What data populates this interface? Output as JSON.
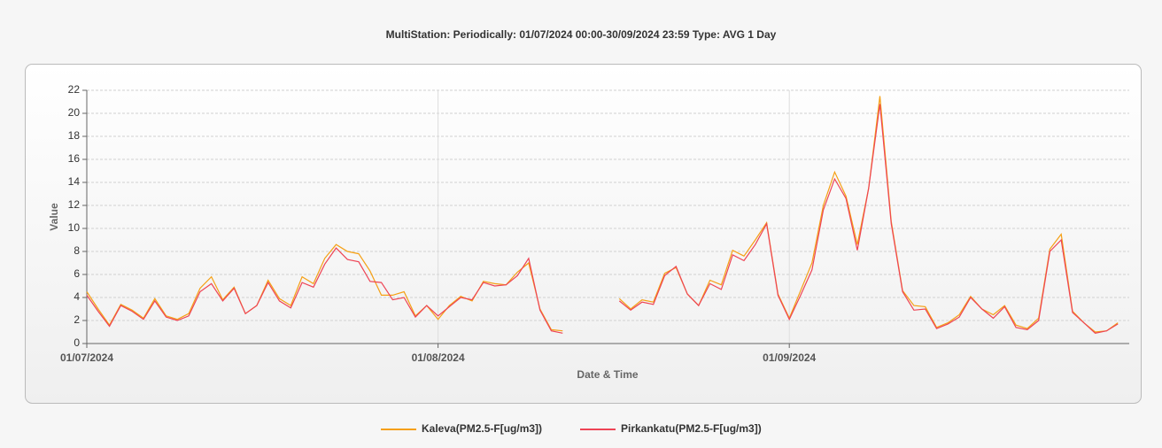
{
  "chart_data": {
    "type": "line",
    "title": "MultiStation:  Periodically: 01/07/2024 00:00-30/09/2024 23:59  Type: AVG 1 Day",
    "x_label": "Date & Time",
    "y_label": "Value",
    "x": [
      "2024-07-01",
      "2024-07-02",
      "2024-07-03",
      "2024-07-04",
      "2024-07-05",
      "2024-07-06",
      "2024-07-07",
      "2024-07-08",
      "2024-07-09",
      "2024-07-10",
      "2024-07-11",
      "2024-07-12",
      "2024-07-13",
      "2024-07-14",
      "2024-07-15",
      "2024-07-16",
      "2024-07-17",
      "2024-07-18",
      "2024-07-19",
      "2024-07-20",
      "2024-07-21",
      "2024-07-22",
      "2024-07-23",
      "2024-07-24",
      "2024-07-25",
      "2024-07-26",
      "2024-07-27",
      "2024-07-28",
      "2024-07-29",
      "2024-07-30",
      "2024-07-31",
      "2024-08-01",
      "2024-08-02",
      "2024-08-03",
      "2024-08-04",
      "2024-08-05",
      "2024-08-06",
      "2024-08-07",
      "2024-08-08",
      "2024-08-09",
      "2024-08-10",
      "2024-08-11",
      "2024-08-12",
      "2024-08-13",
      "2024-08-14",
      "2024-08-15",
      "2024-08-16",
      "2024-08-17",
      "2024-08-18",
      "2024-08-19",
      "2024-08-20",
      "2024-08-21",
      "2024-08-22",
      "2024-08-23",
      "2024-08-24",
      "2024-08-25",
      "2024-08-26",
      "2024-08-27",
      "2024-08-28",
      "2024-08-29",
      "2024-08-30",
      "2024-08-31",
      "2024-09-01",
      "2024-09-02",
      "2024-09-03",
      "2024-09-04",
      "2024-09-05",
      "2024-09-06",
      "2024-09-07",
      "2024-09-08",
      "2024-09-09",
      "2024-09-10",
      "2024-09-11",
      "2024-09-12",
      "2024-09-13",
      "2024-09-14",
      "2024-09-15",
      "2024-09-16",
      "2024-09-17",
      "2024-09-18",
      "2024-09-19",
      "2024-09-20",
      "2024-09-21",
      "2024-09-22",
      "2024-09-23",
      "2024-09-24",
      "2024-09-25",
      "2024-09-26",
      "2024-09-27",
      "2024-09-28",
      "2024-09-29",
      "2024-09-30"
    ],
    "series": [
      {
        "name": "Kaleva(PM2.5-F[ug/m3])",
        "color": "#f5a014",
        "values": [
          4.5,
          3.0,
          1.6,
          3.4,
          2.9,
          2.2,
          3.9,
          2.4,
          2.1,
          2.6,
          4.8,
          5.8,
          3.8,
          4.9,
          2.6,
          3.3,
          5.5,
          3.9,
          3.3,
          5.8,
          5.2,
          7.4,
          8.6,
          8.0,
          7.8,
          6.3,
          4.2,
          4.2,
          4.5,
          2.4,
          3.3,
          2.1,
          3.3,
          4.1,
          3.7,
          5.4,
          5.2,
          5.1,
          6.2,
          7.0,
          3.0,
          1.2,
          1.1,
          null,
          null,
          null,
          null,
          3.9,
          3.0,
          3.8,
          3.6,
          6.1,
          6.6,
          4.3,
          3.3,
          5.5,
          5.1,
          8.1,
          7.6,
          9.0,
          10.5,
          4.3,
          2.2,
          4.6,
          7.0,
          12.0,
          14.9,
          12.8,
          8.6,
          13.5,
          21.5,
          10.6,
          4.6,
          3.3,
          3.2,
          1.4,
          1.8,
          2.5,
          4.1,
          3.0,
          2.5,
          3.3,
          1.6,
          1.3,
          2.2,
          8.2,
          9.5,
          2.8,
          1.8,
          1.0,
          1.1,
          1.8
        ]
      },
      {
        "name": "Pirkankatu(PM2.5-F[ug/m3])",
        "color": "#ee4455",
        "values": [
          4.2,
          2.8,
          1.5,
          3.3,
          2.8,
          2.1,
          3.7,
          2.3,
          2.0,
          2.4,
          4.5,
          5.2,
          3.7,
          4.8,
          2.6,
          3.3,
          5.3,
          3.7,
          3.1,
          5.3,
          4.9,
          6.9,
          8.3,
          7.3,
          7.1,
          5.4,
          5.3,
          3.8,
          4.0,
          2.3,
          3.3,
          2.4,
          3.2,
          4.0,
          3.8,
          5.3,
          5.0,
          5.1,
          5.9,
          7.4,
          2.9,
          1.1,
          0.9,
          null,
          null,
          null,
          null,
          3.7,
          2.9,
          3.6,
          3.4,
          5.9,
          6.7,
          4.3,
          3.3,
          5.2,
          4.7,
          7.7,
          7.2,
          8.6,
          10.4,
          4.2,
          2.1,
          4.2,
          6.4,
          11.6,
          14.3,
          12.6,
          8.1,
          13.5,
          20.8,
          10.4,
          4.5,
          2.9,
          3.0,
          1.3,
          1.7,
          2.3,
          4.0,
          3.0,
          2.2,
          3.2,
          1.4,
          1.2,
          2.0,
          8.0,
          9.0,
          2.7,
          1.8,
          0.9,
          1.1,
          1.7
        ]
      }
    ],
    "xlim": [
      "2024-07-01",
      "2024-10-01"
    ],
    "xticks": [
      {
        "value": "2024-07-01",
        "label": "01/07/2024"
      },
      {
        "value": "2024-08-01",
        "label": "01/08/2024"
      },
      {
        "value": "2024-09-01",
        "label": "01/09/2024"
      }
    ],
    "ylim": [
      0,
      22
    ],
    "yticks": [
      0,
      2,
      4,
      6,
      8,
      10,
      12,
      14,
      16,
      18,
      20,
      22
    ],
    "grid": true,
    "legend": "bottom"
  }
}
